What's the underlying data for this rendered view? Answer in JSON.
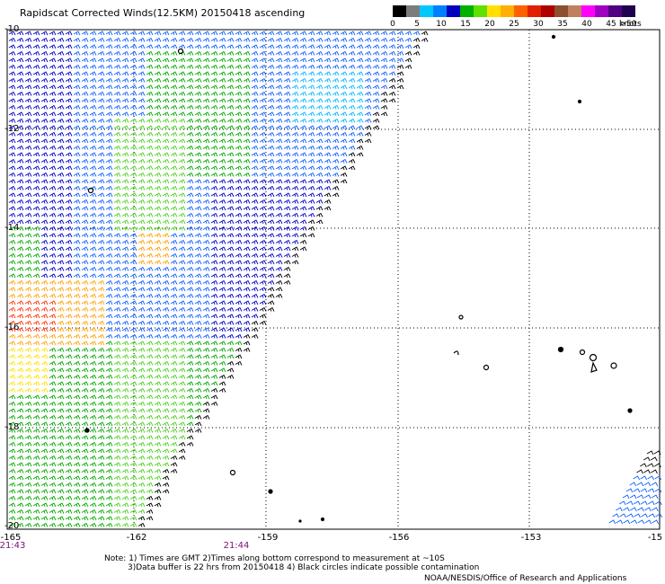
{
  "title": "Rapidscat Corrected Winds(12.5KM) 20150418 ascending",
  "legend": {
    "labels": [
      "0",
      "5",
      "10",
      "15",
      "20",
      "25",
      "30",
      "35",
      "40",
      "45",
      ">50"
    ],
    "unit": "knots",
    "colors": [
      "#000000",
      "#7c7c7c",
      "#00c8ff",
      "#0080ff",
      "#0000c0",
      "#00b000",
      "#60e000",
      "#ffe000",
      "#ffb000",
      "#ff6000",
      "#e02000",
      "#b00000",
      "#8b5030",
      "#c08060",
      "#ff00ff",
      "#a000c0",
      "#500080",
      "#200050"
    ]
  },
  "lat_labels": [
    "-10",
    "-12",
    "-14",
    "-16",
    "-18",
    "-20"
  ],
  "lon_labels": [
    "-165",
    "-162",
    "-159",
    "-156",
    "-153",
    "-15"
  ],
  "time_labels": [
    "21:43",
    "21:44"
  ],
  "notes": [
    "Note: 1) Times are GMT 2)Times along bottom correspond to measurement at ~10S",
    "3)Data buffer is 22 hrs from 20150418 4) Black circles indicate possible contamination"
  ],
  "credit": "NOAA/NESDIS/Office of Research and Applications"
}
